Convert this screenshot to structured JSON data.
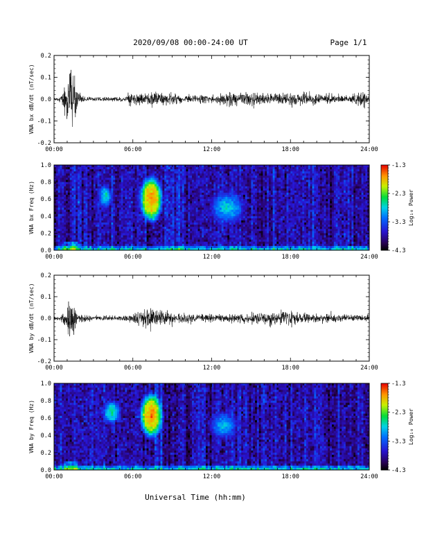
{
  "header": {
    "title": "2020/09/08  00:00-24:00 UT",
    "page": "Page 1/1"
  },
  "chart_data": [
    {
      "type": "line",
      "panel": "bx-waveform",
      "ylabel": "VNA bx dB/dt (nT/sec)",
      "ylim": [
        -0.2,
        0.2
      ],
      "yticks": [
        "0.2",
        "0.1",
        "0.0",
        "-0.1",
        "-0.2"
      ],
      "xticks": [
        "00:00",
        "06:00",
        "12:00",
        "18:00",
        "24:00"
      ],
      "xlim": [
        0,
        24
      ],
      "envelope": {
        "x_hours": [
          0,
          0.5,
          0.9,
          1.1,
          1.3,
          1.5,
          1.8,
          2.5,
          4.0,
          5.5,
          5.9,
          6.3,
          7.0,
          7.5,
          8.5,
          10.0,
          12.0,
          13.0,
          15.0,
          16.5,
          18.0,
          20.0,
          21.5,
          22.5,
          23.0,
          23.6,
          24.0
        ],
        "amplitude": [
          0.008,
          0.012,
          0.08,
          0.16,
          0.2,
          0.16,
          0.04,
          0.015,
          0.013,
          0.015,
          0.06,
          0.035,
          0.03,
          0.05,
          0.035,
          0.025,
          0.025,
          0.033,
          0.04,
          0.035,
          0.04,
          0.03,
          0.025,
          0.02,
          0.045,
          0.05,
          0.01
        ]
      }
    },
    {
      "type": "heatmap",
      "panel": "bx-spectrogram",
      "ylabel": "VNA bx Freq (Hz)",
      "ylim": [
        0.0,
        1.0
      ],
      "yticks": [
        "1.0",
        "0.8",
        "0.6",
        "0.4",
        "0.2",
        "0.0"
      ],
      "xticks": [
        "00:00",
        "06:00",
        "12:00",
        "18:00",
        "24:00"
      ],
      "xlim": [
        0,
        24
      ],
      "colorbar": {
        "label": "Log₁₀ Power",
        "ticks": [
          "-1.3",
          "-2.3",
          "-3.3",
          "-4.3"
        ],
        "range": [
          -4.3,
          -1.3
        ]
      },
      "features": [
        {
          "t0": 6.6,
          "t1": 8.2,
          "f0": 0.32,
          "f1": 0.88,
          "peak": -1.6
        },
        {
          "t0": 3.5,
          "t1": 4.3,
          "f0": 0.5,
          "f1": 0.76,
          "peak": -2.6
        },
        {
          "t0": 11.8,
          "t1": 14.6,
          "f0": 0.3,
          "f1": 0.7,
          "peak": -2.7
        }
      ]
    },
    {
      "type": "line",
      "panel": "by-waveform",
      "ylabel": "VNA by dB/dt (nT/sec)",
      "ylim": [
        -0.2,
        0.2
      ],
      "yticks": [
        "0.2",
        "0.1",
        "0.0",
        "-0.1",
        "-0.2"
      ],
      "xticks": [
        "00:00",
        "06:00",
        "12:00",
        "18:00",
        "24:00"
      ],
      "xlim": [
        0,
        24
      ],
      "envelope": {
        "x_hours": [
          0,
          0.5,
          0.9,
          1.1,
          1.3,
          1.5,
          1.8,
          3.0,
          5.0,
          5.8,
          6.5,
          7.0,
          7.5,
          8.5,
          10.0,
          12.0,
          14.0,
          16.5,
          17.5,
          19.0,
          21.0,
          23.0,
          24.0
        ],
        "amplitude": [
          0.012,
          0.015,
          0.05,
          0.13,
          0.15,
          0.1,
          0.03,
          0.015,
          0.015,
          0.025,
          0.045,
          0.06,
          0.06,
          0.045,
          0.03,
          0.025,
          0.025,
          0.04,
          0.045,
          0.03,
          0.025,
          0.02,
          0.02
        ]
      }
    },
    {
      "type": "heatmap",
      "panel": "by-spectrogram",
      "ylabel": "VNA by Freq (Hz)",
      "ylim": [
        0.0,
        1.0
      ],
      "yticks": [
        "1.0",
        "0.8",
        "0.6",
        "0.4",
        "0.2",
        "0.0"
      ],
      "xticks": [
        "00:00",
        "06:00",
        "12:00",
        "18:00",
        "24:00"
      ],
      "xlim": [
        0,
        24
      ],
      "xlabel": "Universal Time (hh:mm)",
      "colorbar": {
        "label": "Log₁₀ Power",
        "ticks": [
          "-1.3",
          "-2.3",
          "-3.3",
          "-4.3"
        ],
        "range": [
          -4.3,
          -1.3
        ]
      },
      "features": [
        {
          "t0": 6.6,
          "t1": 8.2,
          "f0": 0.36,
          "f1": 0.9,
          "peak": -1.6
        },
        {
          "t0": 3.8,
          "t1": 5.0,
          "f0": 0.53,
          "f1": 0.8,
          "peak": -2.5
        },
        {
          "t0": 11.8,
          "t1": 14.0,
          "f0": 0.35,
          "f1": 0.68,
          "peak": -2.8
        }
      ]
    }
  ]
}
